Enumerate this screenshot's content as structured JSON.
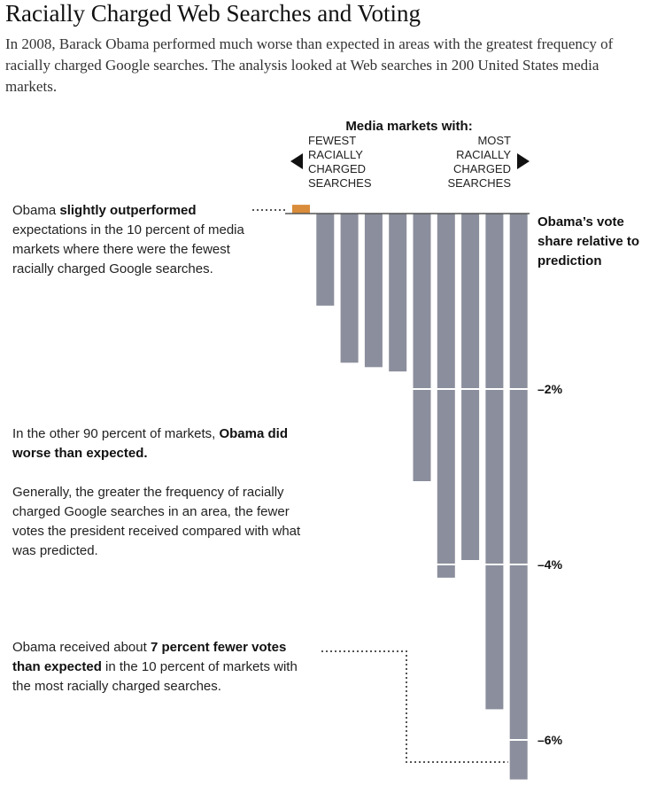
{
  "header": {
    "title": "Racially Charged Web Searches and Voting",
    "subtitle": "In 2008, Barack Obama performed much worse than expected in areas with the greatest frequency of racially charged Google searches. The analysis looked at Web searches in 200 United States media markets."
  },
  "annotations": {
    "outperformed_pre": "Obama ",
    "outperformed_bold": "slightly outperformed",
    "outperformed_post": " expectations in the 10 percent of media markets where there were the fewest racially charged Google searches.",
    "other90_pre": "In the other 90 percent of markets, ",
    "other90_bold": "Obama did worse than expected.",
    "generally": "Generally, the greater the frequency of racially charged Google searches in an area, the fewer votes the president received compared with what was predicted.",
    "fewer_pre": "Obama received about ",
    "fewer_bold": "7 percent fewer votes than expected",
    "fewer_post": " in the 10 percent of markets with the most racially charged searches."
  },
  "chart_data": {
    "type": "bar",
    "header": "Media markets with:",
    "left_label": [
      "FEWEST",
      "RACIALLY",
      "CHARGED",
      "SEARCHES"
    ],
    "right_label": [
      "MOST",
      "RACIALLY",
      "CHARGED",
      "SEARCHES"
    ],
    "ylabel": [
      "Obama’s vote",
      "share relative to",
      "prediction"
    ],
    "tick_labels": [
      "–2%",
      "–4%",
      "–6%"
    ],
    "tick_values": [
      -2,
      -4,
      -6
    ],
    "ylim": [
      -6.5,
      0.2
    ],
    "values": [
      0.1,
      -1.05,
      -1.7,
      -1.75,
      -1.8,
      -3.05,
      -4.15,
      -3.95,
      -5.65,
      -6.45
    ],
    "colors": {
      "positive": "#d98c3a",
      "negative": "#8b8e9c",
      "baseline": "#555555",
      "gridline": "#ffffff",
      "leader": "#555555"
    }
  }
}
